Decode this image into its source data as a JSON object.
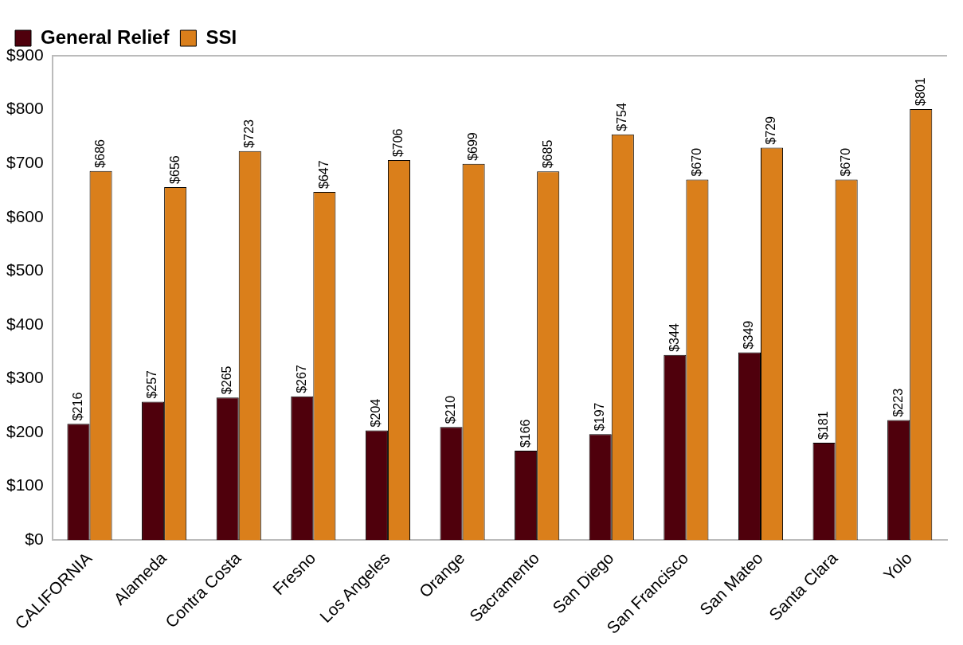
{
  "chart_data": {
    "type": "bar",
    "categories": [
      "CALIFORNIA",
      "Alameda",
      "Contra Costa",
      "Fresno",
      "Los Angeles",
      "Orange",
      "Sacramento",
      "San Diego",
      "San Francisco",
      "San Mateo",
      "Santa Clara",
      "Yolo"
    ],
    "series": [
      {
        "name": "General Relief",
        "color": "#4f000c",
        "values": [
          216,
          257,
          265,
          267,
          204,
          210,
          166,
          197,
          344,
          349,
          181,
          223
        ],
        "value_labels": [
          "$216",
          "$257",
          "$265",
          "$267",
          "$204",
          "$210",
          "$166",
          "$197",
          "$344",
          "$349",
          "$181",
          "$223"
        ]
      },
      {
        "name": "SSI",
        "color": "#da7f1b",
        "values": [
          686,
          656,
          723,
          647,
          706,
          699,
          685,
          754,
          670,
          729,
          670,
          801
        ],
        "value_labels": [
          "$686",
          "$656",
          "$723",
          "$647",
          "$706",
          "$699",
          "$685",
          "$754",
          "$670",
          "$729",
          "$670",
          "$801"
        ]
      }
    ],
    "ylim": [
      0,
      900
    ],
    "yticks": [
      {
        "value": 0,
        "label": "$0"
      },
      {
        "value": 100,
        "label": "$100"
      },
      {
        "value": 200,
        "label": "$200"
      },
      {
        "value": 300,
        "label": "$300"
      },
      {
        "value": 400,
        "label": "$400"
      },
      {
        "value": 500,
        "label": "$500"
      },
      {
        "value": 600,
        "label": "$600"
      },
      {
        "value": 700,
        "label": "$700"
      },
      {
        "value": 800,
        "label": "$800"
      },
      {
        "value": 900,
        "label": "$900"
      }
    ],
    "grid": false,
    "legend": "top left"
  }
}
